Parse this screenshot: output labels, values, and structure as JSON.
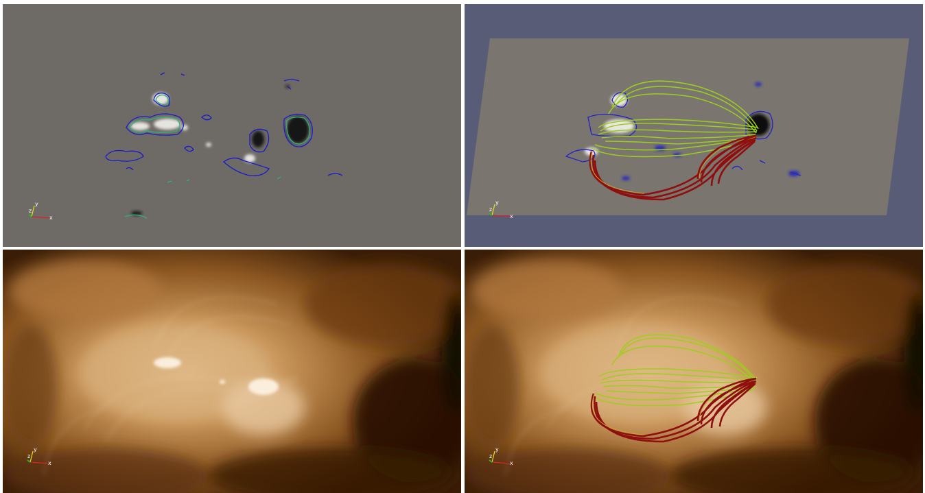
{
  "panels": [
    {
      "name": "magnetogram-contours",
      "axes": {
        "x": "x",
        "y": "y",
        "z": "z"
      }
    },
    {
      "name": "magnetogram-fieldlines",
      "axes": {
        "x": "x",
        "y": "y",
        "z": "z"
      }
    },
    {
      "name": "euv-image",
      "axes": {
        "x": "x",
        "y": "y",
        "z": "z"
      }
    },
    {
      "name": "euv-fieldlines",
      "axes": {
        "x": "x",
        "y": "y",
        "z": "z"
      }
    }
  ],
  "colors": {
    "magnetogram_gray": "#6e6a66",
    "render_background": "#585c76",
    "euv_gold": "#c89a63",
    "contour_blue": "#1a1acc",
    "contour_green": "#2fb27a",
    "fieldline_green": "#9ccf1c",
    "fieldline_red": "#8f0e0e",
    "axis_x": "#e02020",
    "axis_y": "#e8e020",
    "axis_z": "#20c020"
  }
}
